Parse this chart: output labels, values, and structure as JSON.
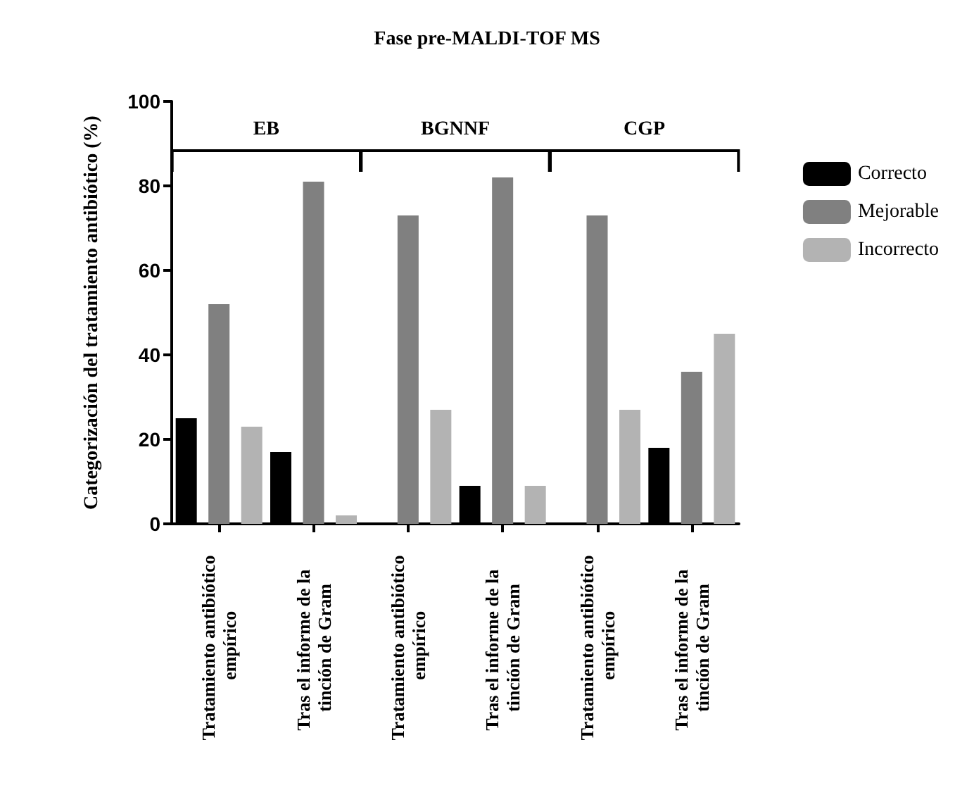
{
  "chart_data": {
    "type": "bar",
    "title": "Fase pre-MALDI-TOF MS",
    "ylabel": "Categorización del tratamiento antibiótico (%)",
    "categories": [
      "Tratamiento antibiótico empírico",
      "Tras el informe de la tinción de Gram",
      "Tratamiento antibiótico empírico",
      "Tras el informe de la tinción de Gram",
      "Tratamiento antibiótico empírico",
      "Tras el informe de la tinción de Gram"
    ],
    "series": [
      {
        "name": "Correcto",
        "color": "#000000",
        "values": [
          25,
          17,
          0,
          9,
          0,
          18
        ]
      },
      {
        "name": "Mejorable",
        "color": "#808080",
        "values": [
          52,
          81,
          73,
          82,
          73,
          36
        ]
      },
      {
        "name": "Incorrecto",
        "color": "#b3b3b3",
        "values": [
          23,
          2,
          27,
          9,
          27,
          45
        ]
      }
    ],
    "annotations": [
      "EB",
      "BGNNF",
      "CGP"
    ],
    "ylim": [
      0,
      100
    ],
    "yticks": [
      0,
      20,
      40,
      60,
      80,
      100
    ],
    "grid": false,
    "legend": "right"
  }
}
